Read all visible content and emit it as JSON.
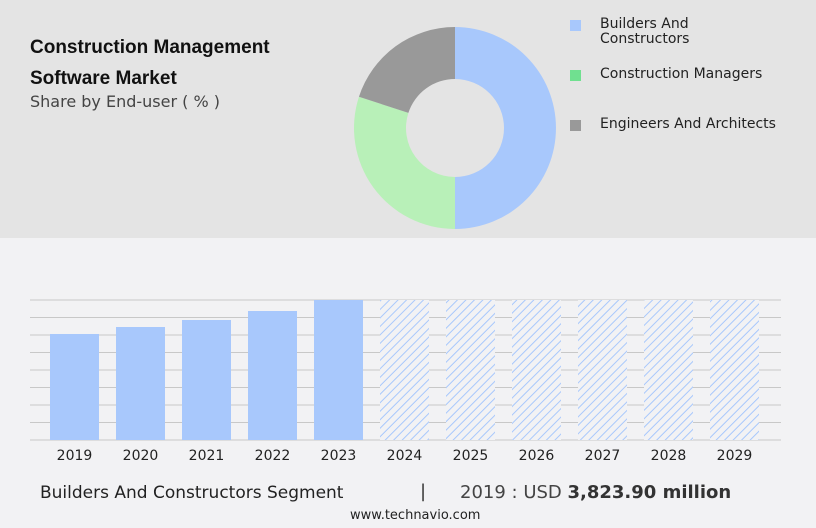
{
  "header": {
    "title": "Construction Management Software Market",
    "subtitle": "Share by End-user ( % )"
  },
  "chart_data": [
    {
      "type": "pie",
      "donut": true,
      "slices": [
        {
          "label": "Builders And Constructors",
          "value": 50,
          "color": "#a8c8fc",
          "legend_color": "#a8c8fc"
        },
        {
          "label": "Construction Managers",
          "value": 30,
          "color": "#b8f0b8",
          "legend_color": "#70e090"
        },
        {
          "label": "Engineers And Architects",
          "value": 20,
          "color": "#999999",
          "legend_color": "#999999"
        }
      ],
      "legend": "right"
    },
    {
      "type": "bar",
      "categories": [
        "2019",
        "2020",
        "2021",
        "2022",
        "2023",
        "2024",
        "2025",
        "2026",
        "2027",
        "2028",
        "2029"
      ],
      "values": [
        3823.9,
        4076,
        4329,
        4653,
        5050,
        null,
        null,
        null,
        null,
        null,
        null
      ],
      "forecast_from": "2024",
      "ylim": [
        0,
        5050
      ],
      "grid": true,
      "color": "#a8c8fc"
    }
  ],
  "footer": {
    "segment": "Builders And Constructors Segment",
    "separator": "|",
    "year_label": "2019 : USD ",
    "value": "3,823.90 million",
    "site": "www.technavio.com"
  }
}
